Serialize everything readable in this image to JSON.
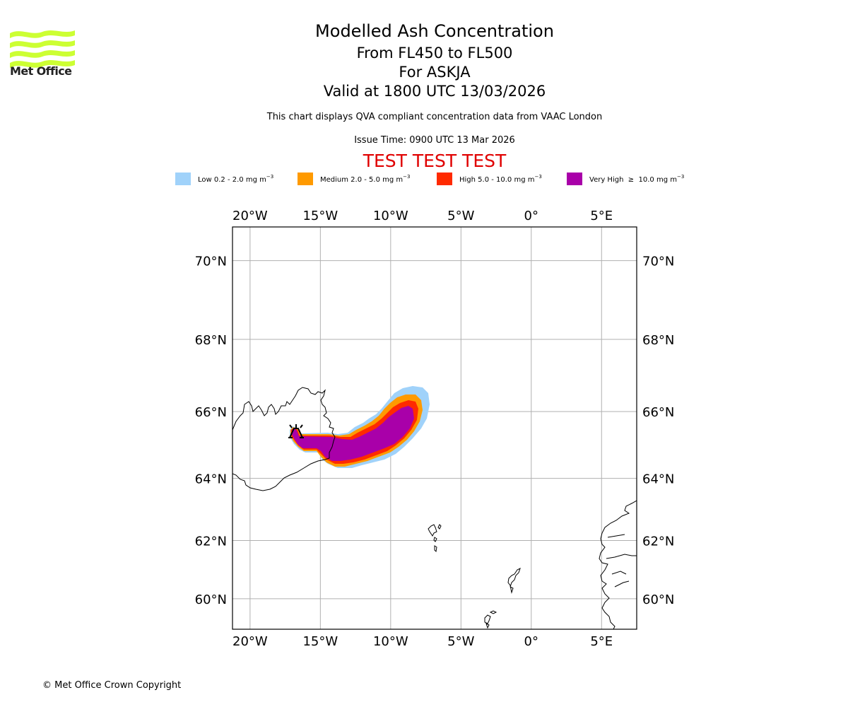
{
  "logo": {
    "text": "Met Office",
    "color": "#ccff33",
    "icon": "met-office-waves-icon"
  },
  "header": {
    "title": "Modelled Ash Concentration",
    "level": "From FL450 to FL500",
    "volcano": "For ASKJA",
    "valid": "Valid at 1800 UTC 13/03/2026",
    "subtitle": "This chart displays QVA compliant concentration data from VAAC London",
    "issue_time": "Issue Time: 0900 UTC 13 Mar 2026",
    "test_banner": "TEST TEST TEST",
    "test_color": "#e00000"
  },
  "legend": [
    {
      "label": "Low 0.2 - 2.0 mg m",
      "unit_exp": "−3",
      "color": "#a0d2fa"
    },
    {
      "label": "Medium 2.0 - 5.0 mg m",
      "unit_exp": "−3",
      "color": "#ff9a00"
    },
    {
      "label": "High 5.0 - 10.0 mg m",
      "unit_exp": "−3",
      "color": "#ff2a00"
    },
    {
      "label": "Very High  ≥  10.0 mg m",
      "unit_exp": "−3",
      "color": "#a900a9"
    }
  ],
  "map": {
    "lon_ticks": [
      "20°W",
      "15°W",
      "10°W",
      "5°W",
      "0°",
      "5°E"
    ],
    "lon_values": [
      -20,
      -15,
      -10,
      -5,
      0,
      5
    ],
    "lat_ticks": [
      "70°N",
      "68°N",
      "66°N",
      "64°N",
      "62°N",
      "60°N"
    ],
    "lat_values": [
      70,
      68,
      66,
      64,
      62,
      60
    ],
    "extent": {
      "lon_min": -21.25,
      "lon_max": 7.5,
      "lat_min": 58.9,
      "lat_max": 70.8
    },
    "volcano": {
      "name": "ASKJA",
      "lon": -16.7,
      "lat": 65.1,
      "icon": "volcano-icon"
    },
    "ash_plume_levels": [
      "Low",
      "Medium",
      "High",
      "Very High"
    ]
  },
  "footer": {
    "copyright": "© Met Office Crown Copyright"
  }
}
